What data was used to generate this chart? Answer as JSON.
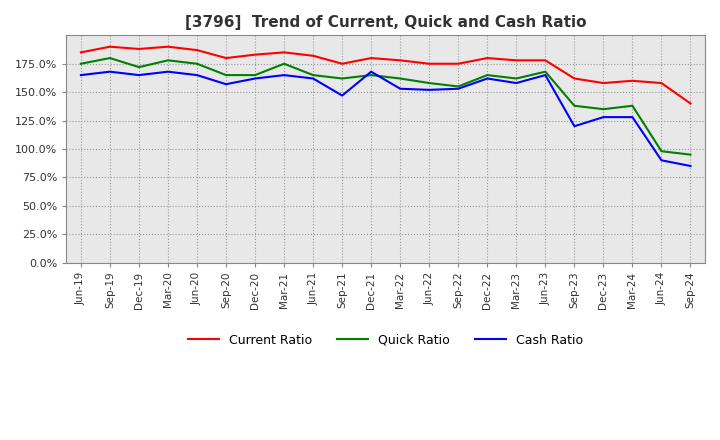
{
  "title": "[3796]  Trend of Current, Quick and Cash Ratio",
  "x_labels": [
    "Jun-19",
    "Sep-19",
    "Dec-19",
    "Mar-20",
    "Jun-20",
    "Sep-20",
    "Dec-20",
    "Mar-21",
    "Jun-21",
    "Sep-21",
    "Dec-21",
    "Mar-22",
    "Jun-22",
    "Sep-22",
    "Dec-22",
    "Mar-23",
    "Jun-23",
    "Sep-23",
    "Dec-23",
    "Mar-24",
    "Jun-24",
    "Sep-24"
  ],
  "current_ratio": [
    1.85,
    1.9,
    1.88,
    1.9,
    1.87,
    1.8,
    1.83,
    1.85,
    1.82,
    1.75,
    1.8,
    1.78,
    1.75,
    1.75,
    1.8,
    1.78,
    1.78,
    1.62,
    1.58,
    1.6,
    1.58,
    1.4
  ],
  "quick_ratio": [
    1.75,
    1.8,
    1.72,
    1.78,
    1.75,
    1.65,
    1.65,
    1.75,
    1.65,
    1.62,
    1.65,
    1.62,
    1.58,
    1.55,
    1.65,
    1.62,
    1.68,
    1.38,
    1.35,
    1.38,
    0.98,
    0.95
  ],
  "cash_ratio": [
    1.65,
    1.68,
    1.65,
    1.68,
    1.65,
    1.57,
    1.62,
    1.65,
    1.62,
    1.47,
    1.68,
    1.53,
    1.52,
    1.53,
    1.62,
    1.58,
    1.65,
    1.2,
    1.28,
    1.28,
    0.9,
    0.85
  ],
  "current_color": "#ff0000",
  "quick_color": "#008000",
  "cash_color": "#0000ff",
  "ylim": [
    0.0,
    2.0
  ],
  "yticks": [
    0.0,
    0.25,
    0.5,
    0.75,
    1.0,
    1.25,
    1.5,
    1.75
  ],
  "plot_bg_color": "#e8e8e8",
  "fig_bg_color": "#ffffff",
  "grid_color": "#999999",
  "title_fontsize": 11,
  "legend_labels": [
    "Current Ratio",
    "Quick Ratio",
    "Cash Ratio"
  ]
}
